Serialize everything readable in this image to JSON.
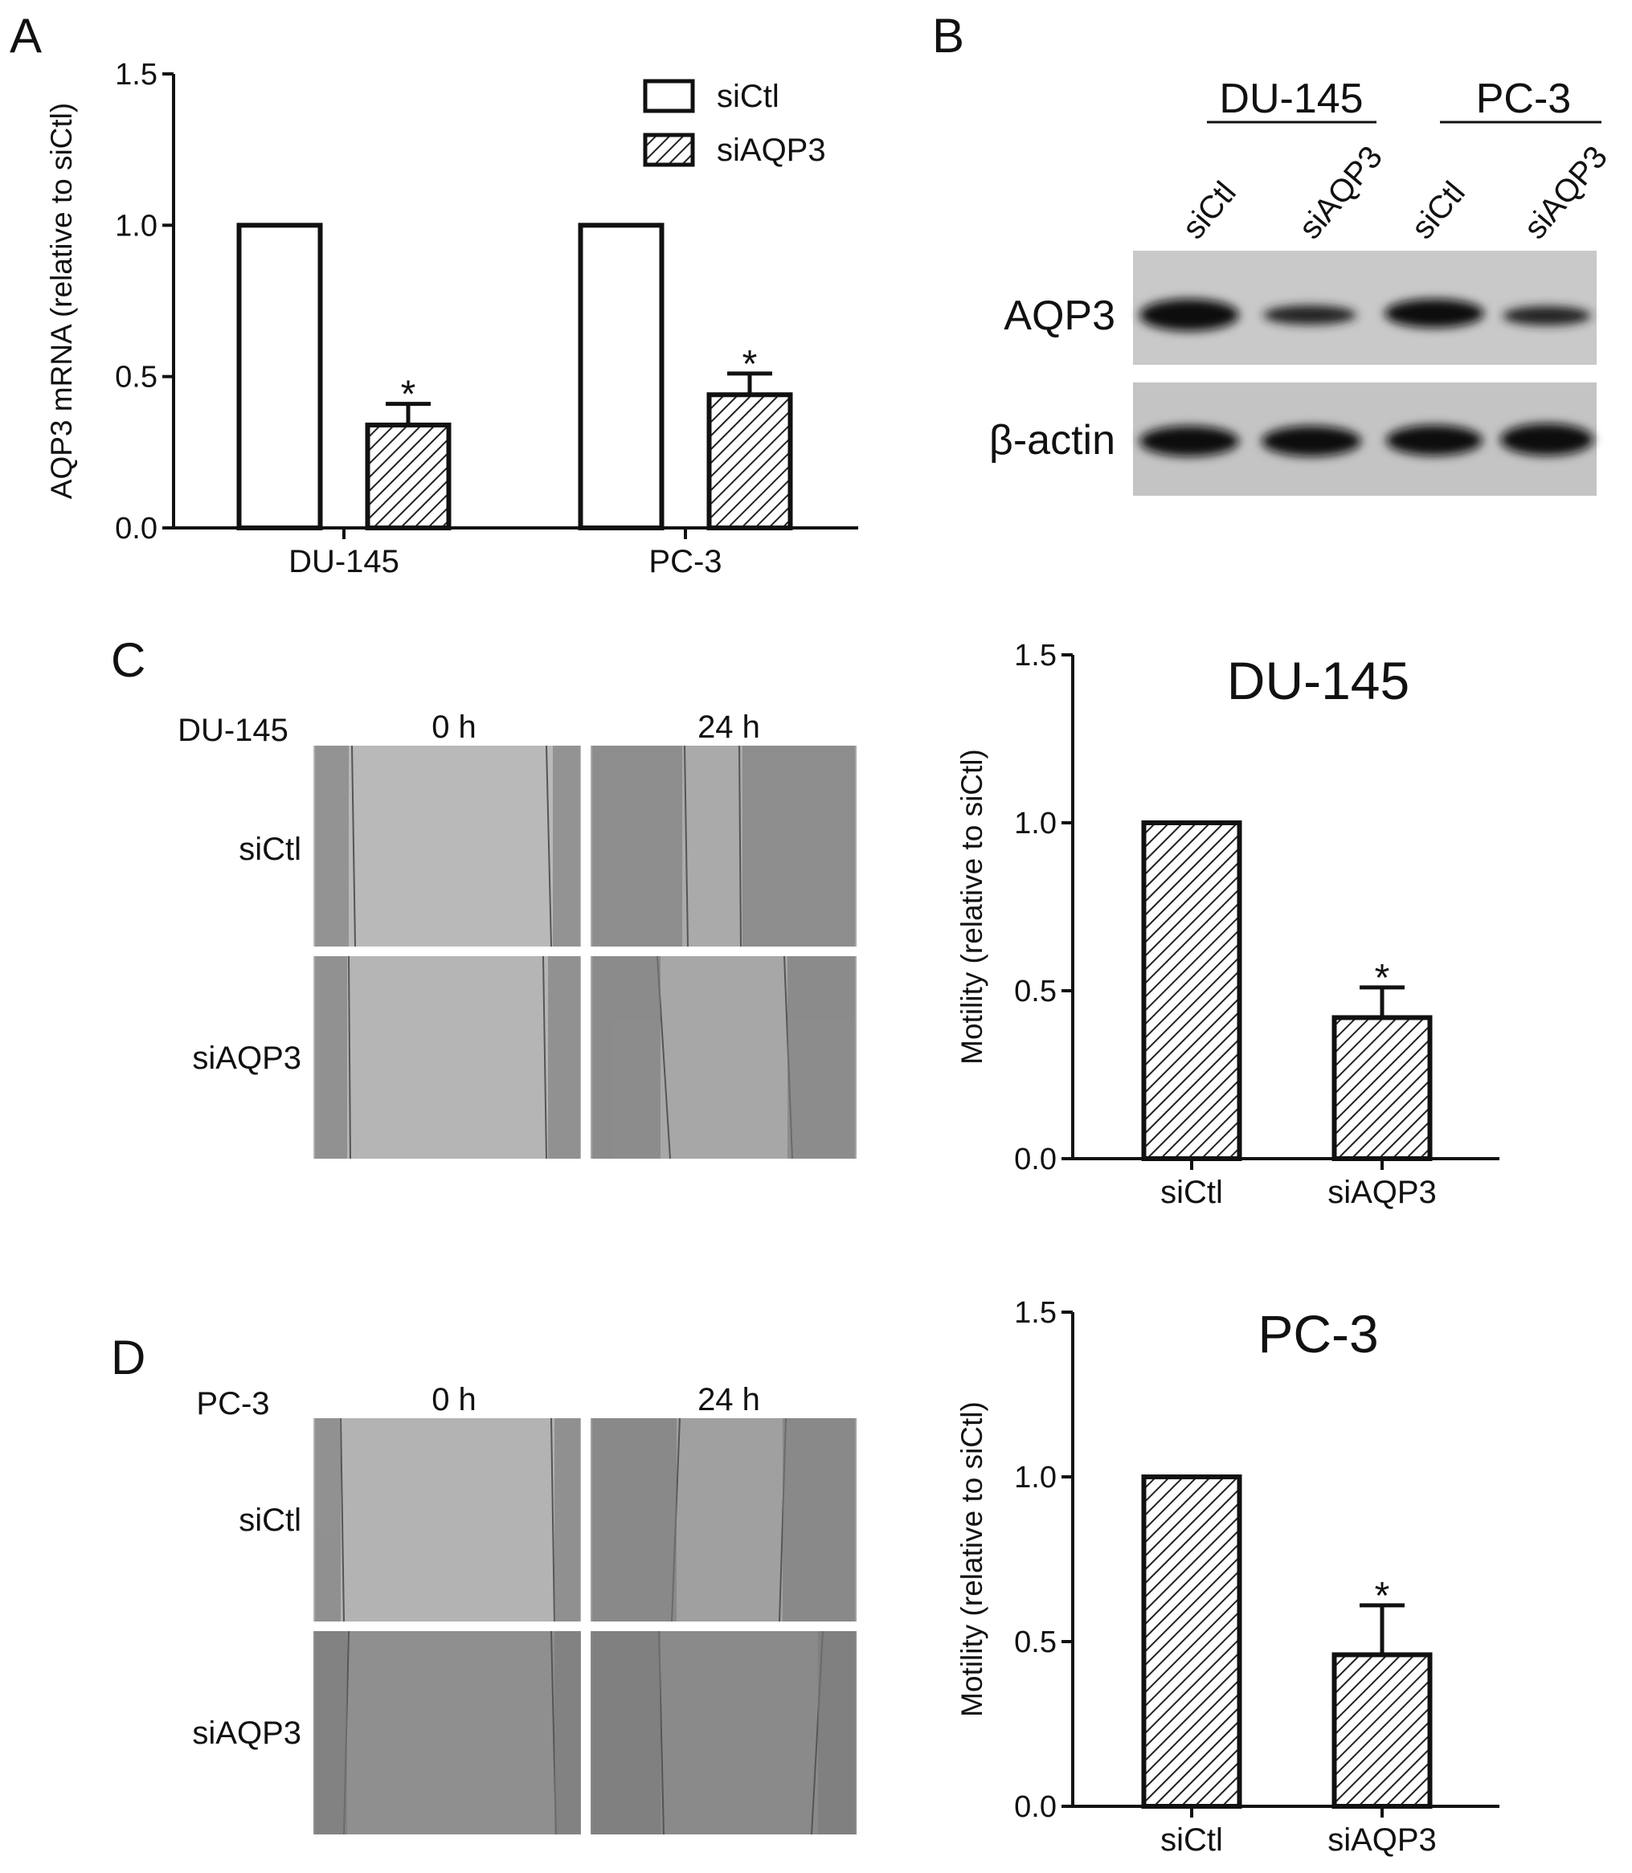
{
  "panel_labels": [
    "A",
    "B",
    "C",
    "D"
  ],
  "chart_data": [
    {
      "type": "bar",
      "ylabel": "AQP3 mRNA (relative to siCtl)",
      "categories": [
        "DU-145",
        "PC-3"
      ],
      "series": [
        {
          "name": "siCtl",
          "hatch": false,
          "values": [
            1.0,
            1.0
          ]
        },
        {
          "name": "siAQP3",
          "hatch": true,
          "values": [
            0.34,
            0.44
          ],
          "errors": [
            0.07,
            0.07
          ],
          "annotations": [
            "*",
            "*"
          ]
        }
      ],
      "ylim": [
        0,
        1.5
      ],
      "yticks": [
        {
          "value": 0,
          "label": "0.0"
        },
        {
          "value": 0.5,
          "label": "0.5"
        },
        {
          "value": 1,
          "label": "1.0"
        },
        {
          "value": 1.5,
          "label": "1.5"
        }
      ],
      "legend": "top-right"
    },
    {
      "type": "bar",
      "title": "DU-145",
      "ylabel": "Motility (relative to siCtl)",
      "hatch": true,
      "categories": [
        "siCtl",
        "siAQP3"
      ],
      "values": [
        1.0,
        0.42
      ],
      "errors": [
        null,
        0.09
      ],
      "annotations": [
        null,
        "*"
      ],
      "ylim": [
        0,
        1.5
      ],
      "yticks": [
        {
          "value": 0,
          "label": "0.0"
        },
        {
          "value": 0.5,
          "label": "0.5"
        },
        {
          "value": 1,
          "label": "1.0"
        },
        {
          "value": 1.5,
          "label": "1.5"
        }
      ]
    },
    {
      "type": "bar",
      "title": "PC-3",
      "ylabel": "Motility (relative to siCtl)",
      "hatch": true,
      "categories": [
        "siCtl",
        "siAQP3"
      ],
      "values": [
        1.0,
        0.46
      ],
      "errors": [
        null,
        0.15
      ],
      "annotations": [
        null,
        "*"
      ],
      "ylim": [
        0,
        1.5
      ],
      "yticks": [
        {
          "value": 0,
          "label": "0.0"
        },
        {
          "value": 0.5,
          "label": "0.5"
        },
        {
          "value": 1,
          "label": "1.0"
        },
        {
          "value": 1.5,
          "label": "1.5"
        }
      ]
    }
  ],
  "blot": {
    "groups": [
      "DU-145",
      "PC-3"
    ],
    "lanes": [
      "siCtl",
      "siAQP3",
      "siCtl",
      "siAQP3"
    ],
    "rows": [
      "AQP3",
      "β-actin"
    ]
  },
  "wound_c": {
    "cell_line": "DU-145",
    "times": [
      "0 h",
      "24 h"
    ],
    "rows": [
      "siCtl",
      "siAQP3"
    ]
  },
  "wound_d": {
    "cell_line": "PC-3",
    "times": [
      "0 h",
      "24 h"
    ],
    "rows": [
      "siCtl",
      "siAQP3"
    ]
  }
}
